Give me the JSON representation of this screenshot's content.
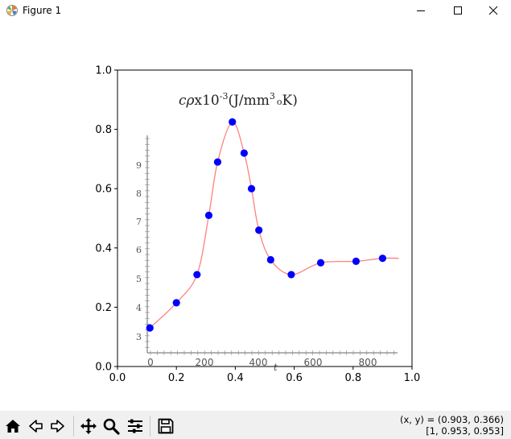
{
  "window": {
    "title": "Figure 1",
    "controls": [
      "minimize-icon",
      "maximize-icon",
      "close-icon"
    ]
  },
  "toolbar": {
    "buttons": [
      "home-icon",
      "back-icon",
      "forward-icon",
      "pan-icon",
      "zoom-icon",
      "configure-subplots-icon",
      "save-icon"
    ],
    "coords_line1": "(x, y) = (0.903, 0.366)",
    "coords_line2": "[1, 0.953, 0.953]"
  },
  "chart_data": {
    "type": "scatter",
    "title": "",
    "xlabel": "",
    "ylabel": "",
    "xlim": [
      0.0,
      1.0
    ],
    "ylim": [
      0.0,
      1.0
    ],
    "xticks": [
      "0.0",
      "0.2",
      "0.4",
      "0.6",
      "0.8",
      "1.0"
    ],
    "yticks": [
      "0.0",
      "0.2",
      "0.4",
      "0.6",
      "0.8",
      "1.0"
    ],
    "grid": false,
    "series": [
      {
        "color": "#0000ff",
        "marker": "circle",
        "x": [
          0.11,
          0.2,
          0.27,
          0.31,
          0.34,
          0.39,
          0.43,
          0.455,
          0.48,
          0.52,
          0.59,
          0.69,
          0.81,
          0.9
        ],
        "y": [
          0.13,
          0.215,
          0.31,
          0.51,
          0.69,
          0.825,
          0.72,
          0.6,
          0.46,
          0.36,
          0.31,
          0.35,
          0.355,
          0.365
        ]
      }
    ],
    "background_image": {
      "description": "embedded scanned plot image",
      "title_text": "cρx10-3(J/mm3 oK)",
      "inner_yticks": [
        "3",
        "4",
        "5",
        "6",
        "7",
        "8",
        "9"
      ],
      "inner_xticks": [
        "0",
        "200",
        "400",
        "600",
        "800"
      ],
      "inner_xlabel": "t",
      "curve_color": "#ff8080"
    }
  }
}
